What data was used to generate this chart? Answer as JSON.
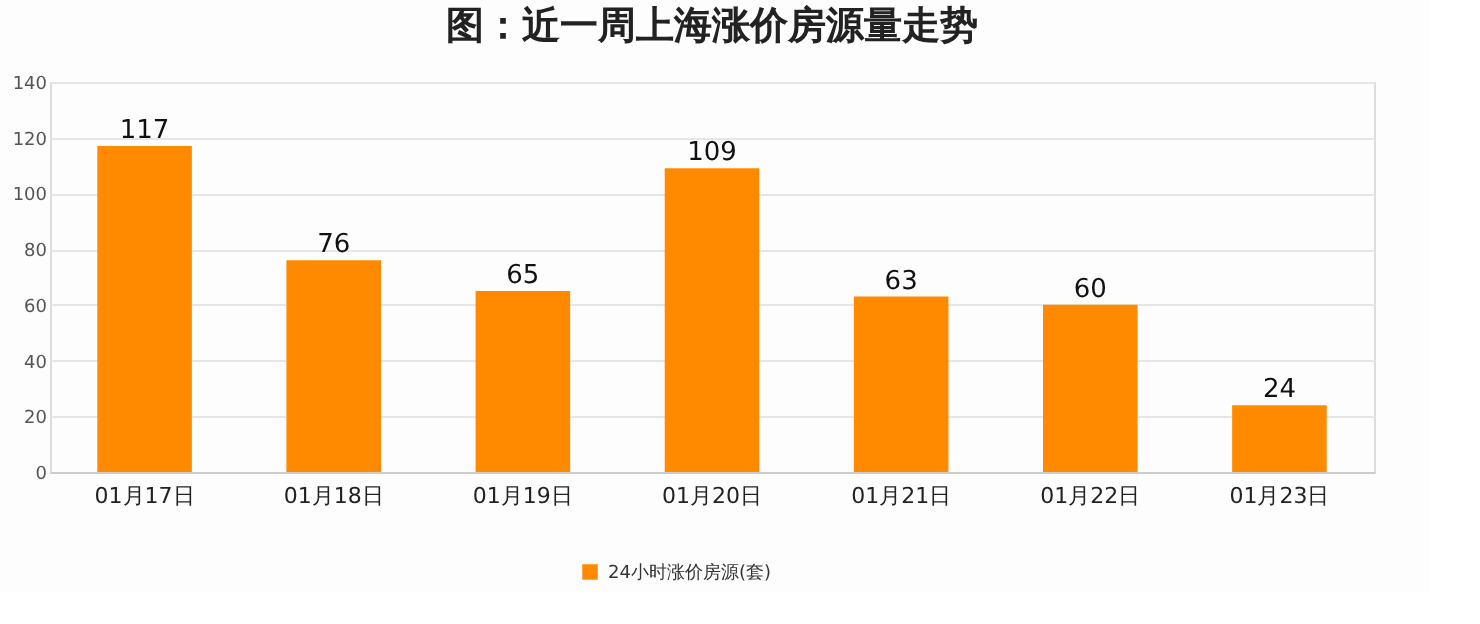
{
  "chart_data": {
    "type": "bar",
    "title": "图：近一周上海涨价房源量走势",
    "categories": [
      "01月17日",
      "01月18日",
      "01月19日",
      "01月20日",
      "01月21日",
      "01月22日",
      "01月23日"
    ],
    "series": [
      {
        "name": "24小时涨价房源(套)",
        "color": "#ff8a00",
        "values": [
          117,
          76,
          65,
          109,
          63,
          60,
          24
        ]
      }
    ],
    "ylim": [
      0,
      140
    ],
    "yticks": [
      0,
      20,
      40,
      60,
      80,
      100,
      120,
      140
    ],
    "grid": "y",
    "legend": "bottom",
    "data_labels": true
  }
}
